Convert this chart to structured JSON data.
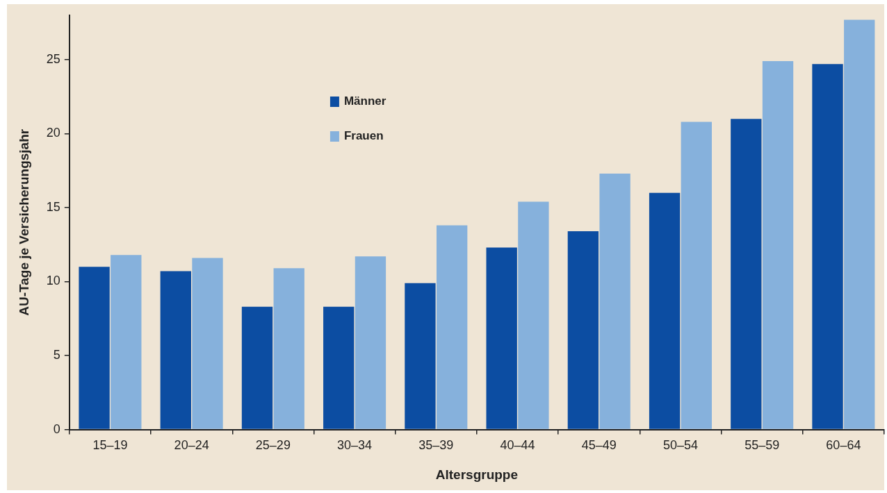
{
  "chart_data": {
    "type": "bar",
    "xlabel": "Altersgruppe",
    "ylabel": "AU-Tage je Versicherungsjahr",
    "categories": [
      "15–19",
      "20–24",
      "25–29",
      "30–34",
      "35–39",
      "40–44",
      "45–49",
      "50–54",
      "55–59",
      "60–64"
    ],
    "series": [
      {
        "name": "Männer",
        "color": "#0c4da2",
        "values": [
          11.0,
          10.7,
          8.3,
          8.3,
          9.9,
          12.3,
          13.4,
          16.0,
          21.0,
          24.7
        ]
      },
      {
        "name": "Frauen",
        "color": "#86b1dc",
        "values": [
          11.8,
          11.6,
          10.9,
          11.7,
          13.8,
          15.4,
          17.3,
          20.8,
          24.9,
          27.7
        ]
      }
    ],
    "ylim": [
      0,
      28
    ],
    "yticks": [
      0,
      5,
      10,
      15,
      20,
      25
    ],
    "grid": false,
    "legend": "top left"
  }
}
